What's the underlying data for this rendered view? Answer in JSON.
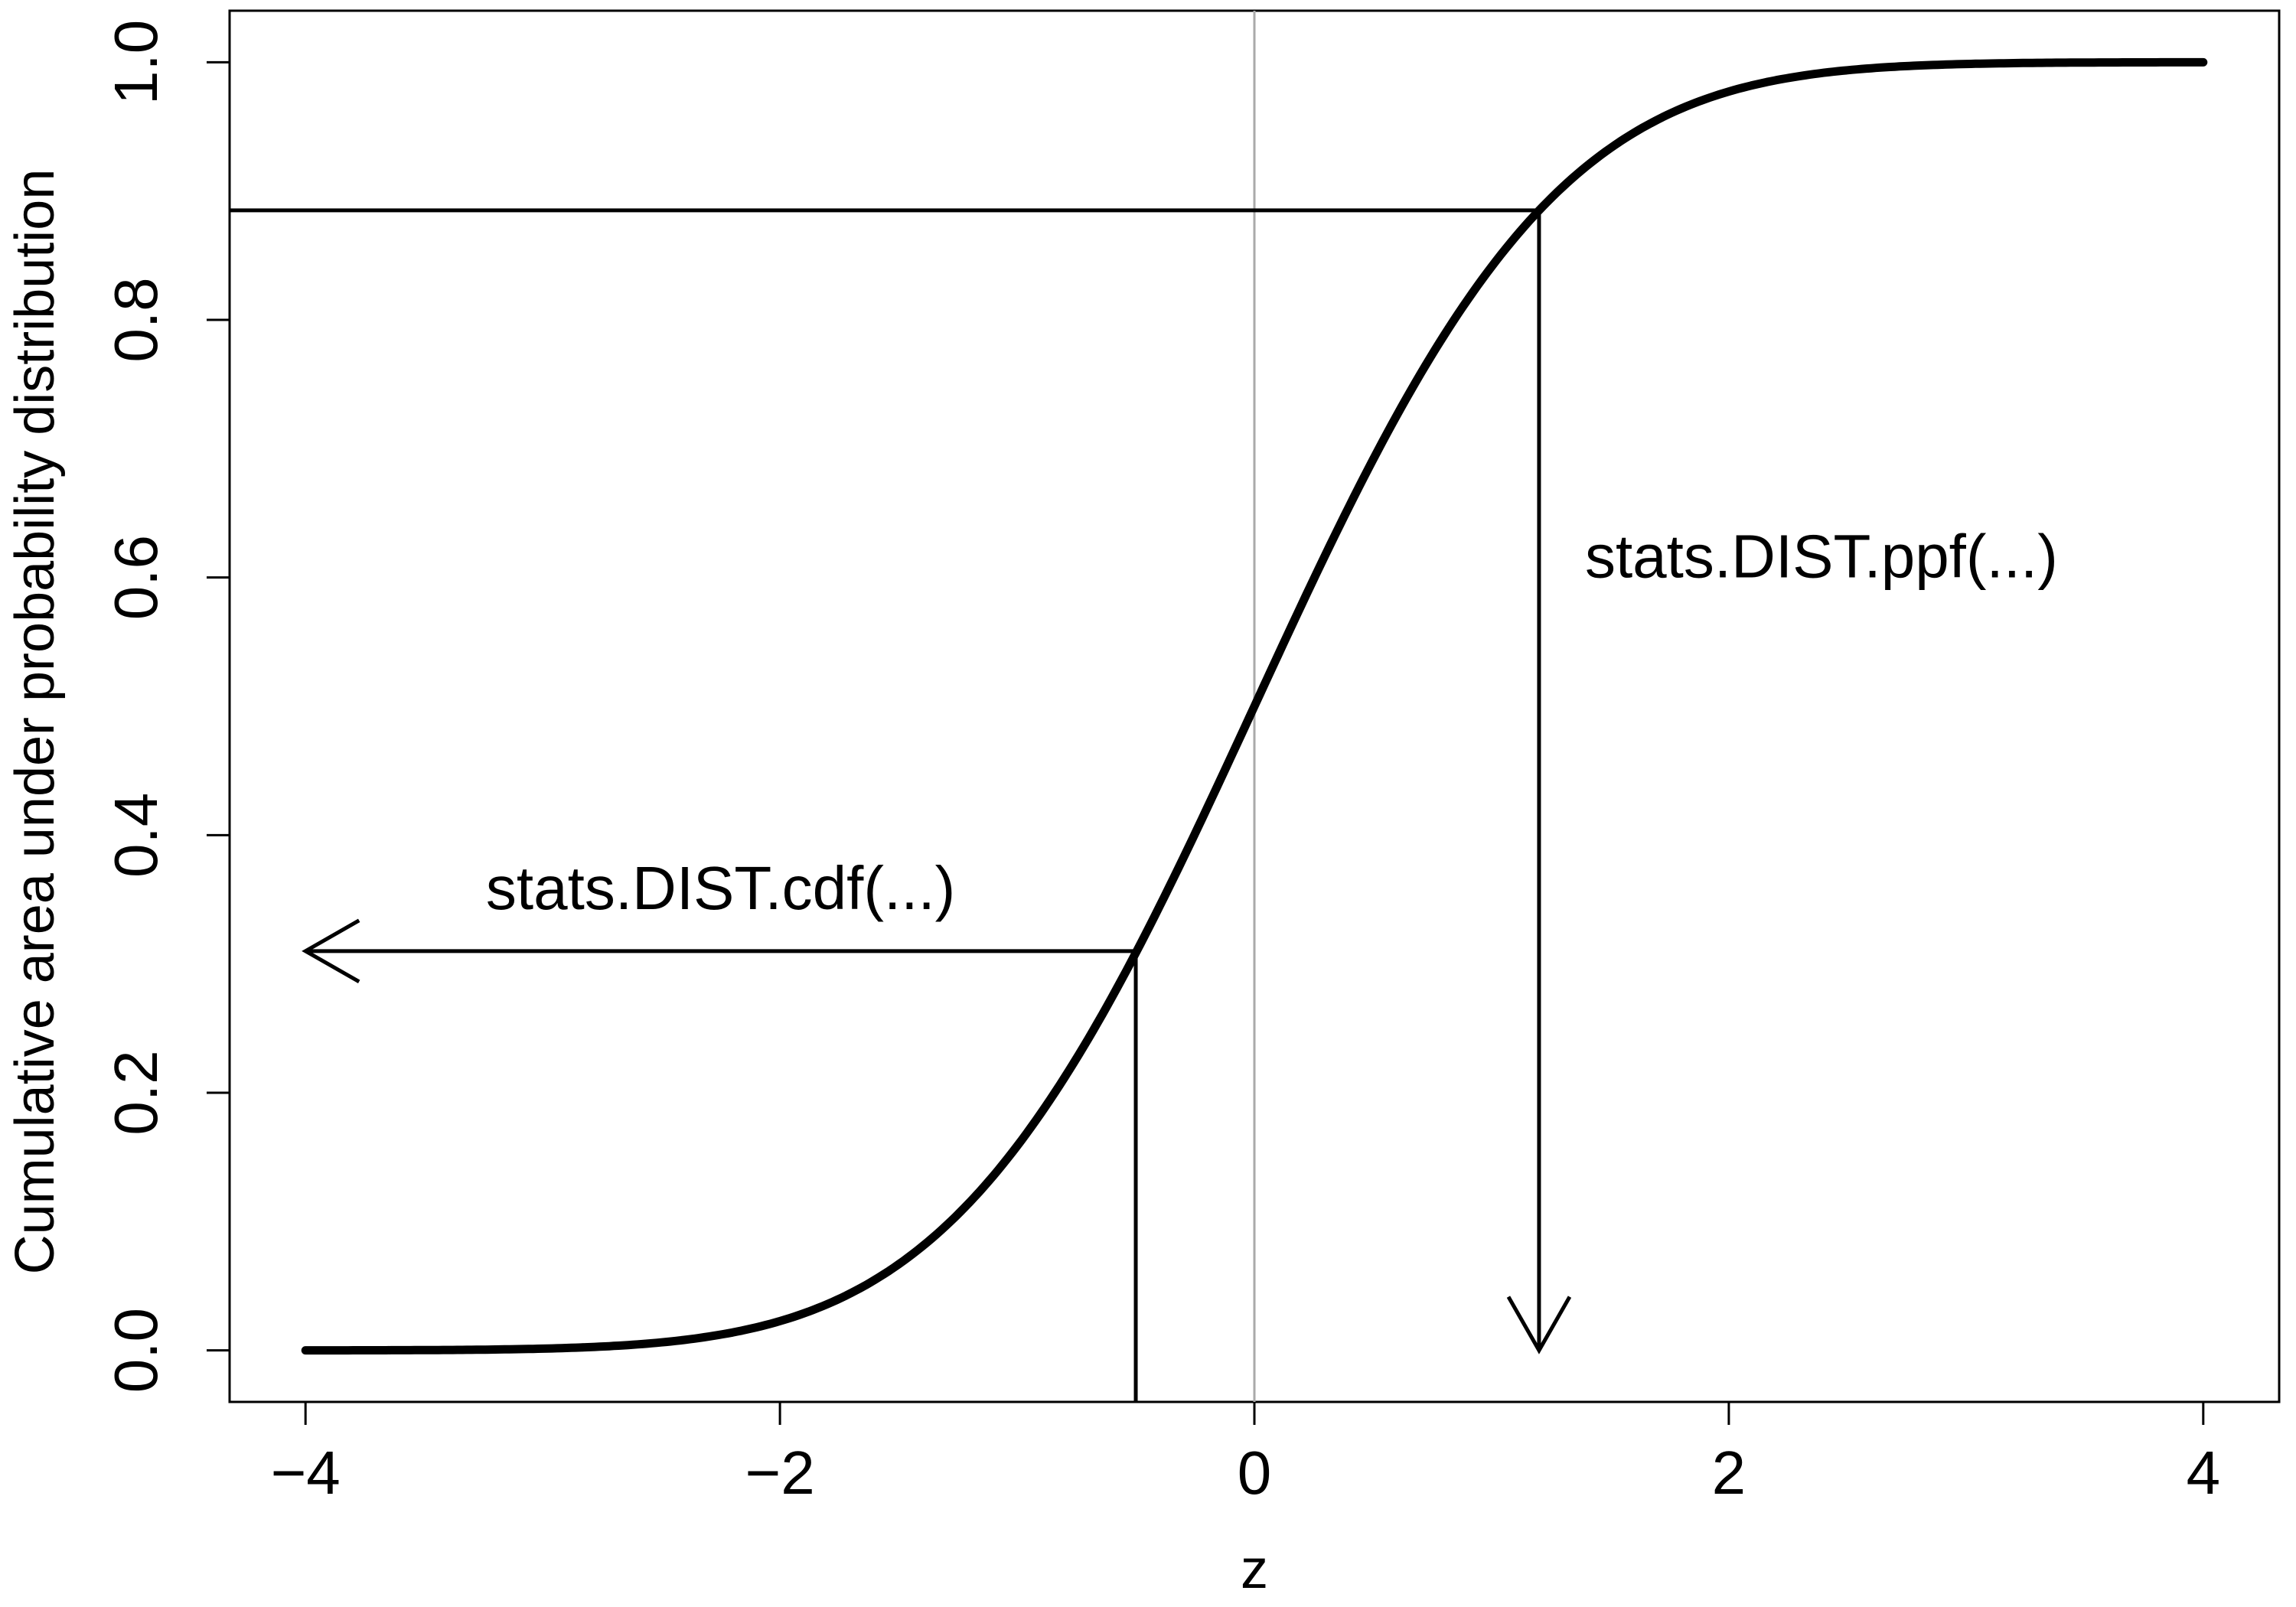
{
  "chart_data": {
    "type": "line",
    "title": "",
    "xlabel": "z",
    "ylabel": "Cumulative area under probability distribution",
    "xlim": [
      -4.32,
      4.32
    ],
    "ylim": [
      -0.04,
      1.04
    ],
    "grid": false,
    "x_ticks": [
      -4,
      -2,
      0,
      2,
      4
    ],
    "x_tick_labels": [
      "−4",
      "−2",
      "0",
      "2",
      "4"
    ],
    "y_ticks": [
      0.0,
      0.2,
      0.4,
      0.6,
      0.8,
      1.0
    ],
    "y_tick_labels": [
      "0.0",
      "0.2",
      "0.4",
      "0.6",
      "0.8",
      "1.0"
    ],
    "series": [
      {
        "function": "standard normal cumulative distribution",
        "x_range": [
          -4,
          4
        ],
        "color": "#000000"
      }
    ],
    "reference_line": {
      "x": 0,
      "color": "#aaaaaa"
    },
    "annotations": {
      "cdf": {
        "text": "stats.DIST.cdf(...)",
        "z": -0.5,
        "p": 0.31,
        "arrow_to_x": -4
      },
      "ppf": {
        "text": "stats.DIST.ppf(...)",
        "z": 1.2,
        "p": 0.885,
        "arrow_to_y": 0
      }
    }
  }
}
